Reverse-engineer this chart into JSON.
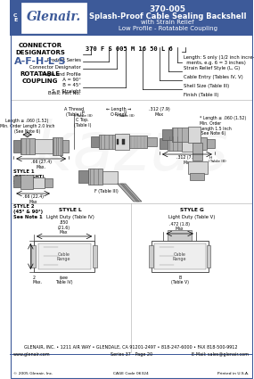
{
  "header_bg": "#3d5a99",
  "header_text_color": "#ffffff",
  "part_number": "370-005",
  "title_line1": "Splash-Proof Cable Sealing Backshell",
  "title_line2": "with Strain Relief",
  "title_line3": "Low Profile - Rotatable Coupling",
  "body_bg": "#ffffff",
  "border_color": "#3d5a99",
  "blue_text_color": "#3d5a99",
  "connector_codes": "A-F-H-L-S",
  "part_code": "370 F S 005 M 16 50 L 6",
  "footer_text": "GLENAIR, INC. • 1211 AIR WAY • GLENDALE, CA 91201-2497 • 818-247-6000 • FAX 818-500-9912",
  "footer_line2_left": "www.glenair.com",
  "footer_line2_center": "Series 37 - Page 20",
  "footer_line2_right": "E-Mail: sales@glenair.com",
  "copyright": "© 2005 Glenair, Inc.",
  "cage_code": "CAGE Code 06324",
  "printed": "Printed in U.S.A.",
  "gray1": "#b0b0b0",
  "gray2": "#d8d8d8",
  "gray3": "#909090",
  "dark": "#404040",
  "line_color": "#000000"
}
